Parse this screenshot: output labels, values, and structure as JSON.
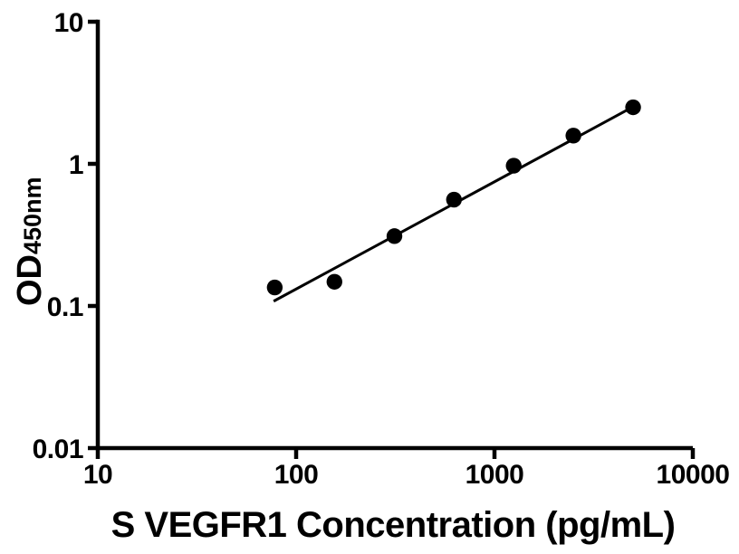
{
  "figure": {
    "background_color": "#ffffff",
    "ink_color": "#000000"
  },
  "chart_data": {
    "type": "scatter",
    "description": "ELISA standard curve, log-log scatter plot with linear fit line",
    "title": "",
    "xlabel": "S VEGFR1 Concentration (pg/mL)",
    "ylabel": "OD450nm",
    "ylabel_main": "OD",
    "ylabel_sub": "450nm",
    "x_scale": "log10",
    "y_scale": "log10",
    "xlim": [
      10,
      10000
    ],
    "ylim": [
      0.01,
      10
    ],
    "grid": false,
    "legend": "none",
    "x_ticks": [
      {
        "value": 10,
        "label": "10"
      },
      {
        "value": 100,
        "label": "100"
      },
      {
        "value": 1000,
        "label": "1000"
      },
      {
        "value": 10000,
        "label": "10000"
      }
    ],
    "y_ticks": [
      {
        "value": 10,
        "label": "10"
      },
      {
        "value": 1,
        "label": "1"
      },
      {
        "value": 0.1,
        "label": "0.1"
      },
      {
        "value": 0.01,
        "label": "0.01"
      }
    ],
    "series": [
      {
        "name": "standard-curve-points",
        "marker": "filled-circle",
        "marker_color": "#000000",
        "marker_radius_px": 8.7,
        "points": [
          {
            "x": 78,
            "y": 0.135
          },
          {
            "x": 156,
            "y": 0.148
          },
          {
            "x": 313,
            "y": 0.31
          },
          {
            "x": 625,
            "y": 0.56
          },
          {
            "x": 1250,
            "y": 0.97
          },
          {
            "x": 2500,
            "y": 1.58
          },
          {
            "x": 5000,
            "y": 2.5
          }
        ]
      }
    ],
    "trendline": {
      "type": "linear-fit-loglog",
      "color": "#000000",
      "x1": 77,
      "y1": 0.108,
      "x2": 5000,
      "y2": 2.52
    }
  }
}
